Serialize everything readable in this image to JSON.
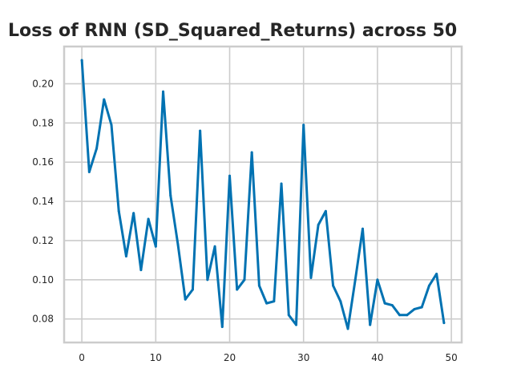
{
  "chart_data": {
    "type": "line",
    "title": "Loss of RNN (SD_Squared_Returns) across 50",
    "xlabel": "",
    "ylabel": "",
    "xlim": [
      -2.4,
      51.4
    ],
    "ylim": [
      0.068,
      0.219
    ],
    "xticks": [
      0,
      10,
      20,
      30,
      40,
      50
    ],
    "yticks": [
      0.08,
      0.1,
      0.12,
      0.14,
      0.16,
      0.18,
      0.2
    ],
    "grid": true,
    "legend": "none",
    "colors": {
      "line": "#0072b2",
      "grid": "#cccccc",
      "spine": "#cccccc",
      "text": "#262626"
    },
    "series": [
      {
        "x": [
          0,
          1,
          2,
          3,
          4,
          5,
          6,
          7,
          8,
          9,
          10,
          11,
          12,
          13,
          14,
          15,
          16,
          17,
          18,
          19,
          20,
          21,
          22,
          23,
          24,
          25,
          26,
          27,
          28,
          29,
          30,
          31,
          32,
          33,
          34,
          35,
          36,
          37,
          38,
          39,
          40,
          41,
          42,
          43,
          44,
          45,
          46,
          47,
          48,
          49
        ],
        "values": [
          0.212,
          0.155,
          0.167,
          0.192,
          0.179,
          0.135,
          0.112,
          0.134,
          0.105,
          0.131,
          0.117,
          0.196,
          0.143,
          0.118,
          0.09,
          0.095,
          0.176,
          0.1,
          0.117,
          0.076,
          0.153,
          0.095,
          0.1,
          0.165,
          0.097,
          0.088,
          0.089,
          0.149,
          0.082,
          0.077,
          0.179,
          0.101,
          0.128,
          0.135,
          0.097,
          0.089,
          0.075,
          0.1,
          0.126,
          0.077,
          0.1,
          0.088,
          0.087,
          0.082,
          0.082,
          0.085,
          0.086,
          0.097,
          0.103,
          0.078
        ]
      }
    ]
  }
}
